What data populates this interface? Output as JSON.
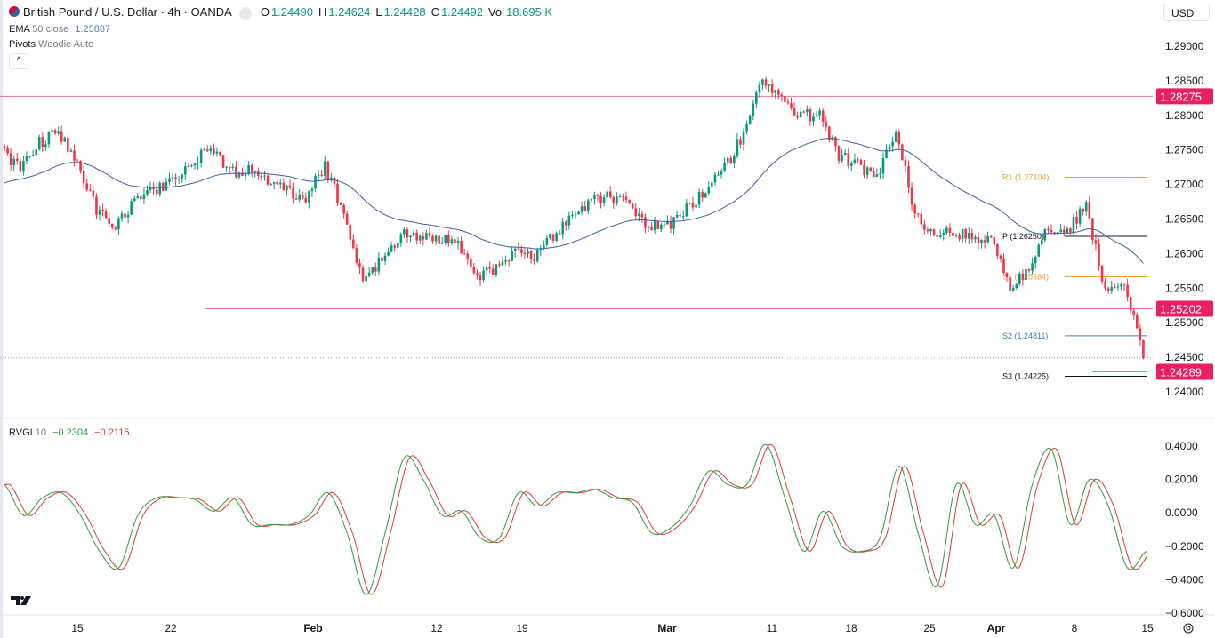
{
  "header": {
    "title": "British Pound / U.S. Dollar · 4h · OANDA",
    "open_label": "O",
    "open": "1.24490",
    "high_label": "H",
    "high": "1.24624",
    "low_label": "L",
    "low": "1.24428",
    "close_label": "C",
    "close": "1.24492",
    "vol_label": "Vol",
    "vol": "18.695 K",
    "currency_button": "USD"
  },
  "indicators": {
    "ema_name": "EMA",
    "ema_params": "50 close",
    "ema_value": "1.25887",
    "pivots_name": "Pivots",
    "pivots_params": "Woodie Auto",
    "rvgi_name": "RVGI",
    "rvgi_params": "10",
    "rvgi_value": "−0.2304",
    "rvgi_signal": "−0.2115"
  },
  "colors": {
    "up": "#089981",
    "down": "#F23645",
    "ema": "#3f5fa8",
    "level_line": "#e5739b",
    "level_label_bg": "#E91E63",
    "pivot_orange": "#e8a33d",
    "pivot_blue": "#4a76d1",
    "pivot_black": "#131722",
    "rvgi": "#2e9e3a",
    "rvgi_signal": "#e53935"
  },
  "chart_data": [
    {
      "type": "candlestick",
      "symbol": "GBP/USD",
      "timeframe": "4h",
      "ylim": [
        1.2375,
        1.2915
      ],
      "y_ticks": [
        "1.29000",
        "1.28500",
        "1.28000",
        "1.27500",
        "1.27000",
        "1.26500",
        "1.26000",
        "1.25500",
        "1.25000",
        "1.24500",
        "1.24000"
      ],
      "x_ticks": [
        "15",
        "22",
        "Feb",
        "12",
        "19",
        "Mar",
        "11",
        "18",
        "25",
        "Apr",
        "8",
        "15"
      ],
      "x_ticks_bold": [
        false,
        false,
        true,
        false,
        false,
        true,
        false,
        false,
        false,
        true,
        false,
        false
      ],
      "close_path": [
        1.2748,
        1.2723,
        1.2761,
        1.2777,
        1.2729,
        1.2665,
        1.2639,
        1.2678,
        1.269,
        1.271,
        1.2723,
        1.2761,
        1.2716,
        1.2723,
        1.2703,
        1.269,
        1.2678,
        1.2729,
        1.2658,
        1.2556,
        1.2594,
        1.2626,
        1.2626,
        1.262,
        1.2613,
        1.2562,
        1.2581,
        1.2601,
        1.2594,
        1.2626,
        1.2652,
        1.2678,
        1.2684,
        1.2671,
        1.2639,
        1.2639,
        1.2665,
        1.269,
        1.2723,
        1.2774,
        1.2858,
        1.2819,
        1.28,
        1.28,
        1.2742,
        1.2729,
        1.271,
        1.278,
        1.2658,
        1.2626,
        1.2633,
        1.2622,
        1.262,
        1.2549,
        1.2581,
        1.2639,
        1.2633,
        1.2671,
        1.2543,
        1.2556,
        1.2449
      ],
      "current_price": 1.24492,
      "horizontal_levels": [
        {
          "value": 1.28275,
          "label": "1.28275"
        },
        {
          "value": 1.25202,
          "label": "1.25202"
        },
        {
          "value": 1.24289,
          "label": "1.24289"
        }
      ],
      "pivots": [
        {
          "name": "R1",
          "value": 1.27104,
          "label": "R1 (1.27104)",
          "color": "orange"
        },
        {
          "name": "P",
          "value": 1.2625,
          "label": "P (1.26250)",
          "color": "black"
        },
        {
          "name": "S1",
          "value": 1.25664,
          "label": "S1 (1.25664)",
          "color": "orange"
        },
        {
          "name": "S2",
          "value": 1.24811,
          "label": "S2 (1.24811)",
          "color": "blue"
        },
        {
          "name": "S3",
          "value": 1.24225,
          "label": "S3 (1.24225)",
          "color": "black"
        }
      ],
      "ema_period": 50
    },
    {
      "type": "line",
      "name": "RVGI 10",
      "ylim": [
        -0.6,
        0.45
      ],
      "y_ticks": [
        "0.4000",
        "0.2000",
        "0.0000",
        "−0.2000",
        "−0.4000",
        "−0.6000"
      ],
      "rvgi": [
        0.17,
        -0.015,
        0.09,
        0.12,
        -0.015,
        -0.23,
        -0.33,
        -0.015,
        0.09,
        0.09,
        0.08,
        0.01,
        0.09,
        -0.07,
        -0.07,
        -0.07,
        -0.015,
        0.12,
        -0.12,
        -0.49,
        -0.12,
        0.33,
        0.2,
        -0.015,
        0.01,
        -0.15,
        -0.15,
        0.12,
        0.04,
        0.12,
        0.12,
        0.14,
        0.09,
        0.06,
        -0.12,
        -0.09,
        0.04,
        0.25,
        0.17,
        0.17,
        0.41,
        0.09,
        -0.23,
        0.01,
        -0.2,
        -0.23,
        -0.15,
        0.28,
        -0.12,
        -0.44,
        0.17,
        -0.07,
        -0.015,
        -0.33,
        0.17,
        0.38,
        -0.07,
        0.2,
        0.04,
        -0.33,
        -0.23
      ]
    }
  ]
}
